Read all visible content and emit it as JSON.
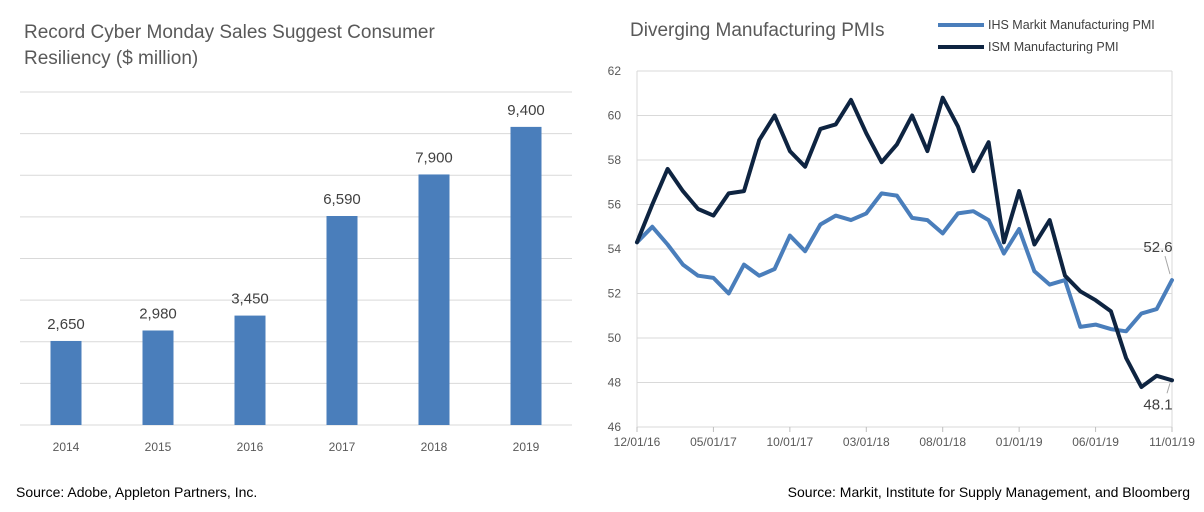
{
  "colors": {
    "bar": "#4a7ebb",
    "ihs": "#4a7ebb",
    "ism": "#0e2441",
    "grid": "#d9d9d9",
    "axis_text": "#595959"
  },
  "left": {
    "title": "Record Cyber Monday Sales Suggest Consumer Resiliency ($ million)",
    "source": "Source:  Adobe, Appleton Partners, Inc."
  },
  "right": {
    "title": "Diverging Manufacturing PMIs",
    "source": "Source: Markit, Institute for Supply Management, and Bloomberg"
  },
  "chart_data": [
    {
      "type": "bar",
      "title": "Record Cyber Monday Sales Suggest Consumer Resiliency ($ million)",
      "categories": [
        "2014",
        "2015",
        "2016",
        "2017",
        "2018",
        "2019"
      ],
      "values": [
        2650,
        2980,
        3450,
        6590,
        7900,
        9400
      ],
      "data_labels": [
        "2,650",
        "2,980",
        "3,450",
        "6,590",
        "7,900",
        "9,400"
      ],
      "ylim": [
        0,
        10500
      ],
      "grid": true
    },
    {
      "type": "line",
      "title": "Diverging Manufacturing PMIs",
      "x_tick_labels": [
        "12/01/16",
        "05/01/17",
        "10/01/17",
        "03/01/18",
        "08/01/18",
        "01/01/19",
        "06/01/19",
        "11/01/19"
      ],
      "y_ticks": [
        46,
        48,
        50,
        52,
        54,
        56,
        58,
        60,
        62
      ],
      "ylim": [
        46,
        62
      ],
      "grid": true,
      "legend_position": "top-right",
      "series": [
        {
          "name": "IHS Markit Manufacturing PMI",
          "values": [
            54.3,
            55.0,
            54.2,
            53.3,
            52.8,
            52.7,
            52.0,
            53.3,
            52.8,
            53.1,
            54.6,
            53.9,
            55.1,
            55.5,
            55.3,
            55.6,
            56.5,
            56.4,
            55.4,
            55.3,
            54.7,
            55.6,
            55.7,
            55.3,
            53.8,
            54.9,
            53.0,
            52.4,
            52.6,
            50.5,
            50.6,
            50.4,
            50.3,
            51.1,
            51.3,
            52.6
          ]
        },
        {
          "name": "ISM Manufacturing PMI",
          "values": [
            54.3,
            56.0,
            57.6,
            56.6,
            55.8,
            55.5,
            56.5,
            56.6,
            58.9,
            60.0,
            58.4,
            57.7,
            59.4,
            59.6,
            60.7,
            59.2,
            57.9,
            58.7,
            60.0,
            58.4,
            60.8,
            59.5,
            57.5,
            58.8,
            54.3,
            56.6,
            54.2,
            55.3,
            52.8,
            52.1,
            51.7,
            51.2,
            49.1,
            47.8,
            48.3,
            48.1
          ]
        }
      ],
      "annotations": [
        "52.6",
        "48.1"
      ]
    }
  ]
}
